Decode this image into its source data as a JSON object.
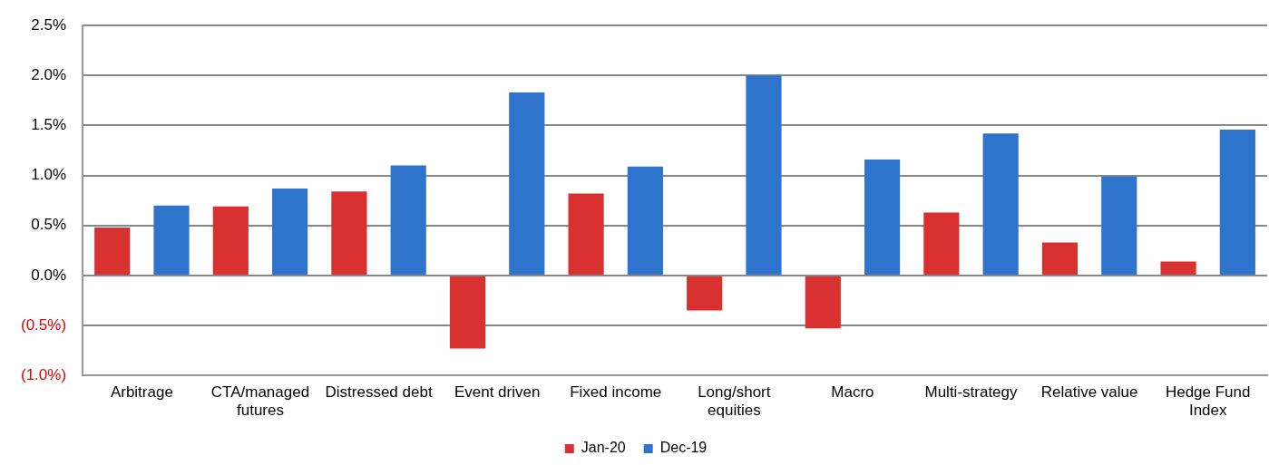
{
  "chart_data": {
    "type": "bar",
    "categories": [
      "Arbitrage",
      "CTA/managed futures",
      "Distressed debt",
      "Event driven",
      "Fixed income",
      "Long/short equities",
      "Macro",
      "Multi-strategy",
      "Relative value",
      "Hedge Fund Index"
    ],
    "series": [
      {
        "name": "Jan-20",
        "color": "#d93030",
        "values": [
          0.48,
          0.69,
          0.84,
          -0.73,
          0.82,
          -0.35,
          -0.53,
          0.63,
          0.33,
          0.14
        ]
      },
      {
        "name": "Dec-19",
        "color": "#2f74cc",
        "values": [
          0.7,
          0.87,
          1.1,
          1.83,
          1.09,
          2.0,
          1.16,
          1.42,
          0.99,
          1.46
        ]
      }
    ],
    "ylim": [
      -1.0,
      2.5
    ],
    "yticks": [
      {
        "value": -1.0,
        "label": "(1.0%)"
      },
      {
        "value": -0.5,
        "label": "(0.5%)"
      },
      {
        "value": 0,
        "label": "0.0%"
      },
      {
        "value": 0.5,
        "label": "0.5%"
      },
      {
        "value": 1.0,
        "label": "1.0%"
      },
      {
        "value": 1.5,
        "label": "1.5%"
      },
      {
        "value": 2.0,
        "label": "2.0%"
      },
      {
        "value": 2.5,
        "label": "2.5%"
      }
    ],
    "grid": "y",
    "legend": "bottom"
  }
}
